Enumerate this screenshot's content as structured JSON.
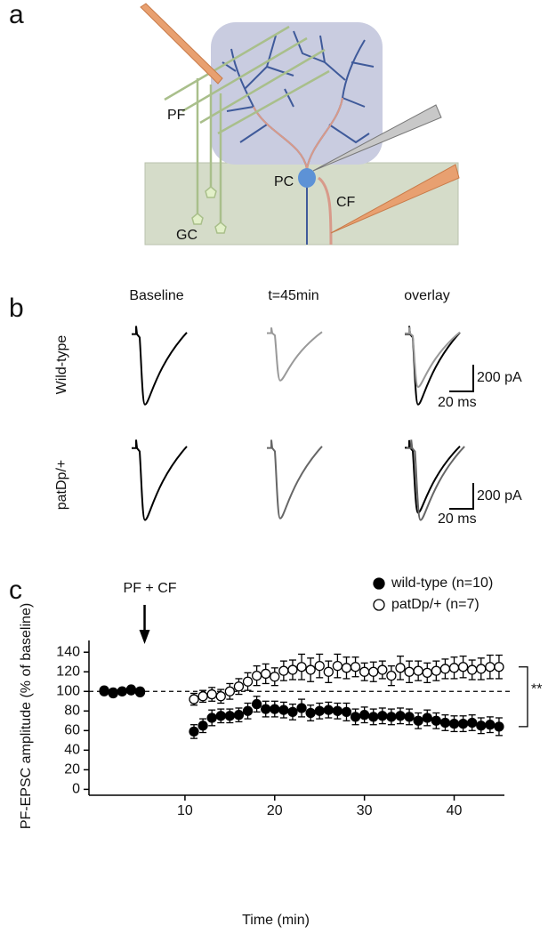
{
  "panel_a": {
    "label": "a",
    "labels": [
      "PF",
      "GC",
      "PC",
      "CF"
    ]
  },
  "panel_b": {
    "label": "b",
    "columns": [
      "Baseline",
      "t=45min",
      "overlay"
    ],
    "rows": [
      "Wild-type",
      "patDp/+"
    ],
    "scale_bars": [
      {
        "current": "200 pA",
        "time": "20 ms"
      },
      {
        "current": "200 pA",
        "time": "20 ms"
      }
    ]
  },
  "chart_data": {
    "type": "scatter",
    "panel_label": "c",
    "x_label": "Time (min)",
    "y_label": "PF-EPSC amplitude (% of baseline)",
    "annotation": {
      "text": "PF + CF",
      "x": 5.5
    },
    "significance": "**",
    "reference_line": 100,
    "x": [
      1,
      2,
      3,
      4,
      5,
      11,
      12,
      13,
      14,
      15,
      16,
      17,
      18,
      19,
      20,
      21,
      22,
      23,
      24,
      25,
      26,
      27,
      28,
      29,
      30,
      31,
      32,
      33,
      34,
      35,
      36,
      37,
      38,
      39,
      40,
      41,
      42,
      43,
      44,
      45
    ],
    "series": [
      {
        "name": "wild-type (n=10)",
        "color": "#000000",
        "fill": "#000000",
        "values": [
          101,
          99,
          100,
          101,
          100,
          59,
          65,
          73,
          75,
          75,
          76,
          80,
          87,
          82,
          82,
          81,
          79,
          83,
          78,
          80,
          81,
          80,
          79,
          74,
          76,
          74,
          75,
          74,
          75,
          74,
          70,
          73,
          70,
          68,
          67,
          67,
          68,
          65,
          66,
          64
        ],
        "errors": [
          2,
          3,
          2,
          2,
          2,
          7,
          7,
          8,
          7,
          7,
          7,
          8,
          8,
          8,
          8,
          8,
          8,
          9,
          8,
          8,
          8,
          8,
          9,
          8,
          8,
          8,
          8,
          8,
          8,
          8,
          8,
          8,
          8,
          8,
          8,
          8,
          8,
          8,
          8,
          9
        ]
      },
      {
        "name": "patDp/+ (n=7)",
        "color": "#000000",
        "fill": "#ffffff",
        "values": [
          100,
          98,
          100,
          102,
          99,
          92,
          95,
          97,
          95,
          100,
          105,
          110,
          116,
          118,
          115,
          121,
          122,
          125,
          122,
          126,
          120,
          126,
          124,
          125,
          120,
          120,
          122,
          116,
          124,
          120,
          121,
          119,
          121,
          123,
          124,
          125,
          122,
          123,
          125,
          125
        ],
        "errors": [
          2,
          3,
          3,
          2,
          2,
          6,
          6,
          7,
          7,
          8,
          8,
          9,
          10,
          10,
          9,
          10,
          10,
          13,
          12,
          12,
          11,
          12,
          11,
          10,
          9,
          10,
          9,
          10,
          12,
          11,
          10,
          10,
          10,
          10,
          11,
          11,
          10,
          11,
          12,
          12
        ]
      }
    ],
    "xlim": [
      -0.7,
      45.6
    ],
    "ylim": [
      -6,
      152
    ],
    "xticks": [
      10,
      20,
      30,
      40
    ],
    "yticks": [
      0,
      20,
      40,
      60,
      80,
      100,
      120,
      140
    ],
    "legend": "top-right"
  }
}
